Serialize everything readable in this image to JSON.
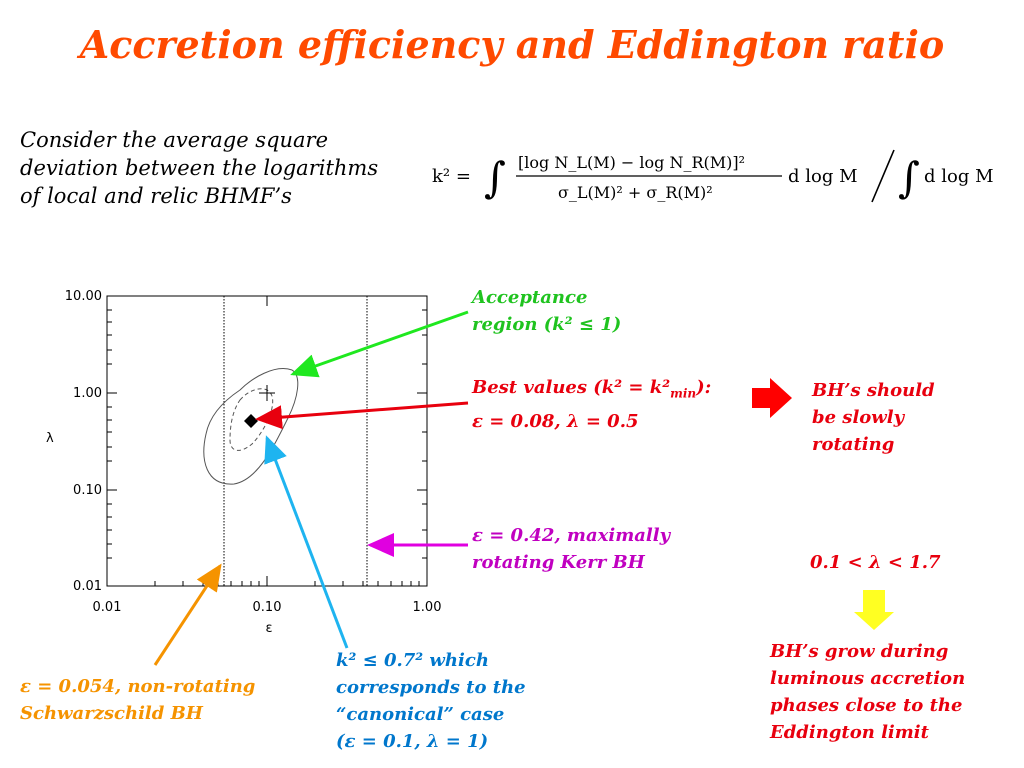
{
  "title": "Accretion efficiency and Eddington ratio",
  "intro": {
    "line1": "Consider the average square",
    "line2": "deviation between the logarithms",
    "line3": "of local and relic BHMF’s"
  },
  "formula": {
    "lhs": "k² =",
    "numerator": "[log N_L(M) − log N_R(M)]²",
    "denominator": "σ_L(M)² + σ_R(M)²",
    "tail": "d log M",
    "right": "d log M"
  },
  "plot": {
    "y_ticks": [
      "10.00",
      "1.00",
      "0.10",
      "0.01"
    ],
    "x_ticks": [
      "0.01",
      "0.10",
      "1.00"
    ],
    "x_label": "ε",
    "y_label": "λ"
  },
  "annotations": {
    "acceptance": {
      "line1": "Acceptance",
      "line2": "region (k² ≤ 1)",
      "color": "#1fc31f"
    },
    "best": {
      "line1": "Best values (k² = k²",
      "sub": "min",
      "line1_end": "):",
      "line2": "ε = 0.08, λ = 0.5",
      "color": "#e8000e"
    },
    "kerr": {
      "line1": "ε = 0.42, maximally",
      "line2": "rotating Kerr BH",
      "color": "#c000c0"
    },
    "schwarz": {
      "line1": "ε = 0.054, non-rotating",
      "line2": "Schwarzschild BH",
      "color": "#f59300"
    },
    "canonical": {
      "line1": "k² ≤ 0.7² which",
      "line2": "corresponds to the",
      "line3": "“canonical” case",
      "line4": "(ε = 0.1, λ = 1)",
      "color": "#0077cc"
    },
    "rotating": {
      "line1": "BH’s should",
      "line2": "be slowly",
      "line3": "rotating",
      "color": "#e8000e"
    },
    "lambda_range": {
      "text": "0.1 < λ < 1.7",
      "color": "#e8000e"
    },
    "grow": {
      "line1": "BH’s grow during",
      "line2": "luminous accretion",
      "line3": "phases close to the",
      "line4": "Eddington limit",
      "color": "#e8000e"
    }
  }
}
